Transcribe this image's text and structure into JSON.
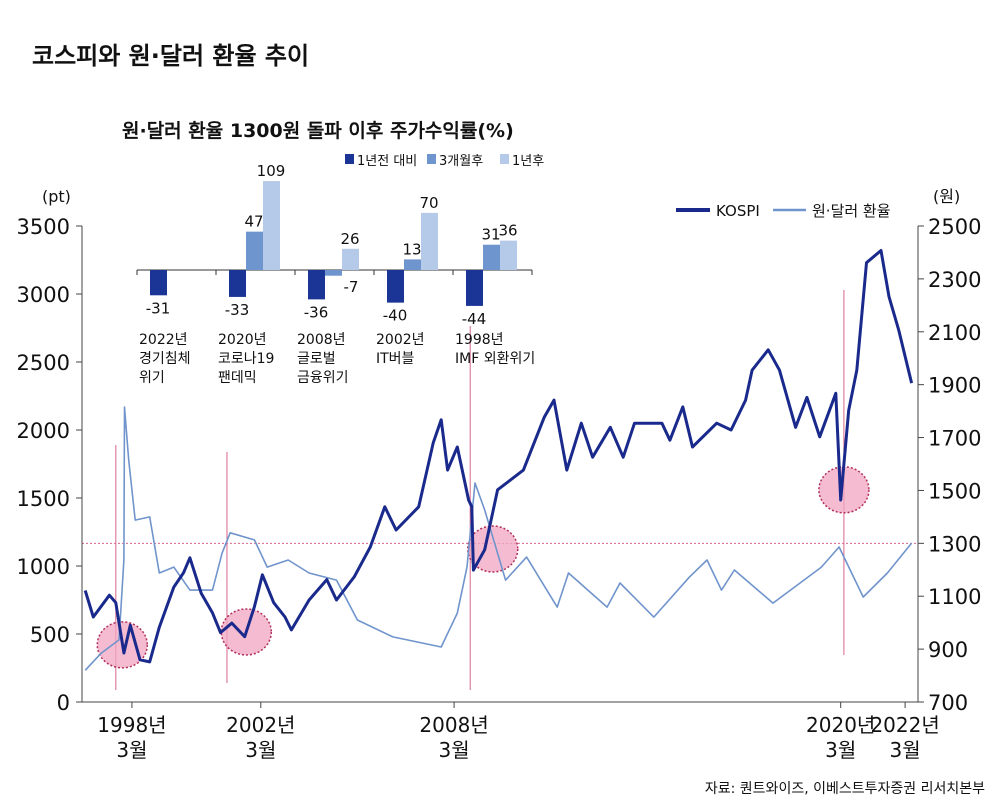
{
  "title": "코스피와 원·달러 환율 추이",
  "source": "자료: 퀀트와이즈, 이베스트투자증권 리서치본부",
  "colors": {
    "kospi": "#1a2a8c",
    "fx": "#7094cc",
    "bar_dark": "#1a3596",
    "bar_mid": "#6f95cf",
    "bar_light": "#b5c9e8",
    "marker": "#d9668a",
    "highlight": "#f2a6c2"
  },
  "chart_data": [
    {
      "type": "line",
      "left_axis": {
        "unit_label": "(pt)",
        "range": [
          0,
          3500
        ],
        "ticks": [
          "0",
          "500",
          "1000",
          "1500",
          "2000",
          "2500",
          "3000",
          "3500"
        ]
      },
      "right_axis": {
        "unit_label": "(원)",
        "range": [
          700,
          2500
        ],
        "ticks": [
          "700",
          "900",
          "1100",
          "1300",
          "1500",
          "1700",
          "1900",
          "2100",
          "2300",
          "2500"
        ]
      },
      "x_ticks": [
        {
          "x": 1998.2,
          "line1": "1998년",
          "line2": "3월"
        },
        {
          "x": 2002.2,
          "line1": "2002년",
          "line2": "3월"
        },
        {
          "x": 2008.2,
          "line1": "2008년",
          "line2": "3월"
        },
        {
          "x": 2020.2,
          "line1": "2020년",
          "line2": "3월"
        },
        {
          "x": 2022.2,
          "line1": "2022년",
          "line2": "3월"
        }
      ],
      "x_range": [
        1996.65,
        2022.6
      ],
      "legend": {
        "position": "top-right",
        "kospi": "KOSPI",
        "fx": "원·달러 환율"
      },
      "reference_line_fx": 1300,
      "event_markers": [
        1997.7,
        2001.15,
        2008.7,
        2020.3
      ],
      "highlights": [
        [
          1997.9,
          420
        ],
        [
          2001.75,
          515
        ],
        [
          2009.4,
          1125
        ],
        [
          2020.3,
          1560
        ]
      ],
      "series": [
        {
          "name": "KOSPI",
          "axis": "left",
          "points": [
            [
              1996.75,
              820
            ],
            [
              1997.0,
              625
            ],
            [
              1997.5,
              785
            ],
            [
              1997.7,
              730
            ],
            [
              1997.95,
              360
            ],
            [
              1998.15,
              565
            ],
            [
              1998.45,
              310
            ],
            [
              1998.75,
              295
            ],
            [
              1999.05,
              550
            ],
            [
              1999.5,
              845
            ],
            [
              1999.8,
              950
            ],
            [
              2000.0,
              1060
            ],
            [
              2000.35,
              800
            ],
            [
              2000.7,
              655
            ],
            [
              2000.95,
              510
            ],
            [
              2001.3,
              580
            ],
            [
              2001.7,
              480
            ],
            [
              2002.0,
              700
            ],
            [
              2002.25,
              935
            ],
            [
              2002.6,
              730
            ],
            [
              2002.95,
              625
            ],
            [
              2003.15,
              530
            ],
            [
              2003.7,
              750
            ],
            [
              2004.25,
              900
            ],
            [
              2004.55,
              750
            ],
            [
              2005.1,
              920
            ],
            [
              2005.6,
              1140
            ],
            [
              2006.05,
              1435
            ],
            [
              2006.4,
              1265
            ],
            [
              2007.1,
              1435
            ],
            [
              2007.55,
              1905
            ],
            [
              2007.8,
              2075
            ],
            [
              2008.0,
              1705
            ],
            [
              2008.3,
              1875
            ],
            [
              2008.65,
              1485
            ],
            [
              2008.75,
              1435
            ],
            [
              2008.8,
              970
            ],
            [
              2009.15,
              1120
            ],
            [
              2009.55,
              1560
            ],
            [
              2010.35,
              1705
            ],
            [
              2011.0,
              2095
            ],
            [
              2011.3,
              2220
            ],
            [
              2011.7,
              1705
            ],
            [
              2012.15,
              2050
            ],
            [
              2012.5,
              1800
            ],
            [
              2013.05,
              2020
            ],
            [
              2013.45,
              1800
            ],
            [
              2013.8,
              2050
            ],
            [
              2014.65,
              2050
            ],
            [
              2014.9,
              1925
            ],
            [
              2015.3,
              2170
            ],
            [
              2015.6,
              1875
            ],
            [
              2016.35,
              2050
            ],
            [
              2016.8,
              2000
            ],
            [
              2017.25,
              2220
            ],
            [
              2017.45,
              2440
            ],
            [
              2017.95,
              2590
            ],
            [
              2018.3,
              2440
            ],
            [
              2018.8,
              2020
            ],
            [
              2019.15,
              2240
            ],
            [
              2019.55,
              1950
            ],
            [
              2020.05,
              2270
            ],
            [
              2020.2,
              1485
            ],
            [
              2020.45,
              2145
            ],
            [
              2020.7,
              2440
            ],
            [
              2021.0,
              3230
            ],
            [
              2021.45,
              3320
            ],
            [
              2021.7,
              2980
            ],
            [
              2022.0,
              2735
            ],
            [
              2022.4,
              2345
            ]
          ]
        },
        {
          "name": "원·달러 환율",
          "axis": "right",
          "points": [
            [
              1996.75,
              820
            ],
            [
              1997.25,
              885
            ],
            [
              1997.8,
              935
            ],
            [
              1997.95,
              1237
            ],
            [
              1997.97,
              1815
            ],
            [
              1998.1,
              1615
            ],
            [
              1998.3,
              1388
            ],
            [
              1998.75,
              1400
            ],
            [
              1999.05,
              1188
            ],
            [
              1999.5,
              1210
            ],
            [
              2000.0,
              1123
            ],
            [
              2000.7,
              1123
            ],
            [
              2001.0,
              1263
            ],
            [
              2001.25,
              1340
            ],
            [
              2002.0,
              1313
            ],
            [
              2002.4,
              1210
            ],
            [
              2003.05,
              1237
            ],
            [
              2003.7,
              1188
            ],
            [
              2004.55,
              1161
            ],
            [
              2005.2,
              1010
            ],
            [
              2006.3,
              946
            ],
            [
              2007.8,
              908
            ],
            [
              2008.3,
              1036
            ],
            [
              2008.6,
              1210
            ],
            [
              2008.85,
              1528
            ],
            [
              2009.15,
              1426
            ],
            [
              2009.8,
              1161
            ],
            [
              2010.45,
              1248
            ],
            [
              2011.4,
              1059
            ],
            [
              2011.75,
              1188
            ],
            [
              2012.95,
              1059
            ],
            [
              2013.35,
              1150
            ],
            [
              2014.4,
              1021
            ],
            [
              2015.5,
              1172
            ],
            [
              2016.05,
              1237
            ],
            [
              2016.5,
              1123
            ],
            [
              2016.9,
              1199
            ],
            [
              2018.1,
              1074
            ],
            [
              2019.6,
              1210
            ],
            [
              2020.15,
              1286
            ],
            [
              2020.9,
              1097
            ],
            [
              2021.65,
              1188
            ],
            [
              2022.4,
              1301
            ]
          ]
        }
      ]
    },
    {
      "type": "bar",
      "title": "원·달러 환율 1300원 돌파 이후 주가수익률(%)",
      "legend": [
        "1년전 대비",
        "3개월후",
        "1년후"
      ],
      "categories": [
        {
          "line1": "2022년",
          "line2": "경기침체",
          "line3": "위기"
        },
        {
          "line1": "2020년",
          "line2": "코로나19",
          "line3": "팬데믹"
        },
        {
          "line1": "2008년",
          "line2": "글로벌",
          "line3": "금융위기"
        },
        {
          "line1": "2002년",
          "line2": "IT버블",
          "line3": ""
        },
        {
          "line1": "1998년",
          "line2": "IMF 외환위기",
          "line3": ""
        }
      ],
      "series": [
        {
          "name": "1년전 대비",
          "values": [
            -31,
            -33,
            -36,
            -40,
            -44
          ]
        },
        {
          "name": "3개월후",
          "values": [
            null,
            47,
            -7,
            13,
            31
          ]
        },
        {
          "name": "1년후",
          "values": [
            null,
            109,
            26,
            70,
            36
          ]
        }
      ],
      "labels": [
        [
          "-31",
          "-33",
          "-36",
          "-40",
          "-44"
        ],
        [
          "",
          "47",
          "-7",
          "13",
          "31"
        ],
        [
          "",
          "109",
          "26",
          "70",
          "36"
        ]
      ]
    }
  ]
}
